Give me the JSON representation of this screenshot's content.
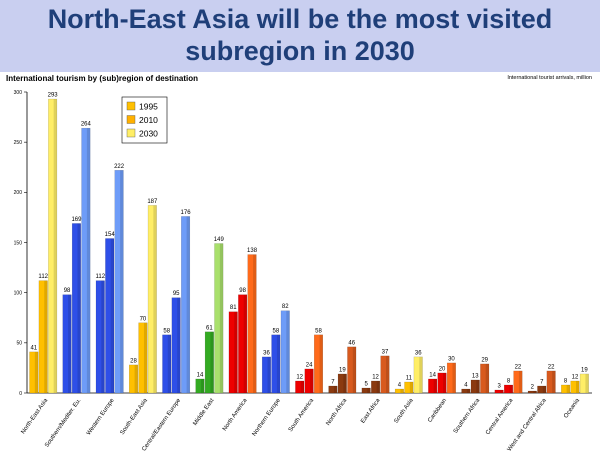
{
  "slide": {
    "title_line1": "North-East Asia will be the most visited",
    "title_line2": "subregion in 2030"
  },
  "chart_data": {
    "type": "bar",
    "title": "International tourism by (sub)region of destination",
    "unit_note": "International tourist arrivals, million",
    "xlabel": "",
    "ylabel": "",
    "ylim": [
      0,
      300
    ],
    "yticks": [
      0,
      50,
      100,
      150,
      200,
      250,
      300
    ],
    "grid": false,
    "legend_position": "top-left",
    "categories": [
      "North-East Asia",
      "Southern/Mediter. Eu.",
      "Western Europe",
      "South-East Asia",
      "Central/Eastern Europe",
      "Middle East",
      "North America",
      "Northern Europe",
      "South America",
      "North Africa",
      "East Africa",
      "South Asia",
      "Caribbean",
      "Southern Africa",
      "Central America",
      "West and Central Africa",
      "Oceania"
    ],
    "colors": [
      [
        "#ffc000",
        "#ffc000",
        "#ffee66"
      ],
      [
        "#2e4fe8",
        "#2e4fe8",
        "#6e9cf8"
      ],
      [
        "#2e4fe8",
        "#2e4fe8",
        "#6e9cf8"
      ],
      [
        "#ffc000",
        "#ffc000",
        "#ffee66"
      ],
      [
        "#2e4fe8",
        "#2e4fe8",
        "#6e9cf8"
      ],
      [
        "#33aa22",
        "#33aa22",
        "#a9e06c"
      ],
      [
        "#ee0000",
        "#ee0000",
        "#ff6a1a"
      ],
      [
        "#2e4fe8",
        "#2e4fe8",
        "#6e9cf8"
      ],
      [
        "#ee0000",
        "#ee0000",
        "#ff6a1a"
      ],
      [
        "#8b3a10",
        "#8b3a10",
        "#d85a1e"
      ],
      [
        "#8b3a10",
        "#8b3a10",
        "#d85a1e"
      ],
      [
        "#ffc000",
        "#ffc000",
        "#ffee66"
      ],
      [
        "#ee0000",
        "#ee0000",
        "#ff6a1a"
      ],
      [
        "#8b3a10",
        "#8b3a10",
        "#d85a1e"
      ],
      [
        "#ee0000",
        "#ee0000",
        "#ff6a1a"
      ],
      [
        "#8b3a10",
        "#8b3a10",
        "#d85a1e"
      ],
      [
        "#ffc000",
        "#ffc000",
        "#ffee66"
      ]
    ],
    "series": [
      {
        "name": "1995",
        "legend_color": "#ffc000",
        "values": [
          41,
          98,
          112,
          28,
          58,
          14,
          81,
          36,
          12,
          7,
          5,
          4,
          14,
          4,
          3,
          2,
          8
        ]
      },
      {
        "name": "2010",
        "legend_color": "#ffb000",
        "values": [
          112,
          169,
          154,
          70,
          95,
          61,
          98,
          58,
          24,
          19,
          12,
          11,
          20,
          13,
          8,
          7,
          12
        ]
      },
      {
        "name": "2030",
        "legend_color": "#ffee66",
        "values": [
          293,
          264,
          222,
          187,
          176,
          149,
          138,
          82,
          58,
          46,
          37,
          36,
          30,
          29,
          22,
          22,
          19
        ]
      }
    ]
  }
}
